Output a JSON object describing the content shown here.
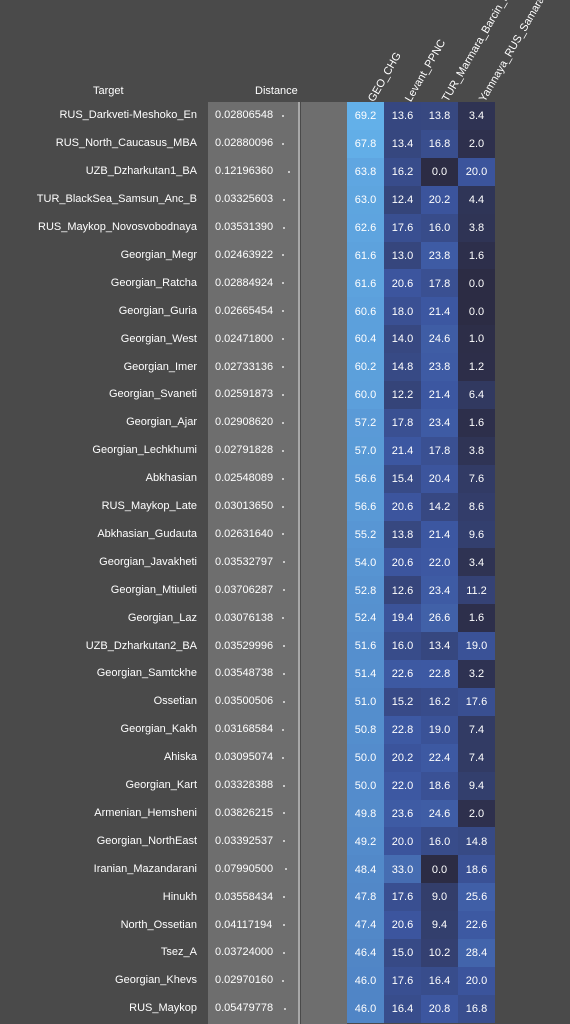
{
  "headers": {
    "target": "Target",
    "distance": "Distance"
  },
  "chart_data": {
    "type": "table",
    "columns": [
      "GEO_CHG",
      "Levant_PPNC",
      "TUR_Marmara_Barcin_N",
      "Yamnaya_RUS_Samara"
    ],
    "rows": [
      {
        "target": "RUS_Darkveti-Meshoko_En",
        "distance": "0.02806548",
        "values": [
          69.2,
          13.6,
          13.8,
          3.4
        ]
      },
      {
        "target": "RUS_North_Caucasus_MBA",
        "distance": "0.02880096",
        "values": [
          67.8,
          13.4,
          16.8,
          2.0
        ]
      },
      {
        "target": "UZB_Dzharkutan1_BA",
        "distance": "0.12196360",
        "values": [
          63.8,
          16.2,
          0.0,
          20.0
        ]
      },
      {
        "target": "TUR_BlackSea_Samsun_Anc_B",
        "distance": "0.03325603",
        "values": [
          63.0,
          12.4,
          20.2,
          4.4
        ]
      },
      {
        "target": "RUS_Maykop_Novosvobodnaya",
        "distance": "0.03531390",
        "values": [
          62.6,
          17.6,
          16.0,
          3.8
        ]
      },
      {
        "target": "Georgian_Megr",
        "distance": "0.02463922",
        "values": [
          61.6,
          13.0,
          23.8,
          1.6
        ]
      },
      {
        "target": "Georgian_Ratcha",
        "distance": "0.02884924",
        "values": [
          61.6,
          20.6,
          17.8,
          0.0
        ]
      },
      {
        "target": "Georgian_Guria",
        "distance": "0.02665454",
        "values": [
          60.6,
          18.0,
          21.4,
          0.0
        ]
      },
      {
        "target": "Georgian_West",
        "distance": "0.02471800",
        "values": [
          60.4,
          14.0,
          24.6,
          1.0
        ]
      },
      {
        "target": "Georgian_Imer",
        "distance": "0.02733136",
        "values": [
          60.2,
          14.8,
          23.8,
          1.2
        ]
      },
      {
        "target": "Georgian_Svaneti",
        "distance": "0.02591873",
        "values": [
          60.0,
          12.2,
          21.4,
          6.4
        ]
      },
      {
        "target": "Georgian_Ajar",
        "distance": "0.02908620",
        "values": [
          57.2,
          17.8,
          23.4,
          1.6
        ]
      },
      {
        "target": "Georgian_Lechkhumi",
        "distance": "0.02791828",
        "values": [
          57.0,
          21.4,
          17.8,
          3.8
        ]
      },
      {
        "target": "Abkhasian",
        "distance": "0.02548089",
        "values": [
          56.6,
          15.4,
          20.4,
          7.6
        ]
      },
      {
        "target": "RUS_Maykop_Late",
        "distance": "0.03013650",
        "values": [
          56.6,
          20.6,
          14.2,
          8.6
        ]
      },
      {
        "target": "Abkhasian_Gudauta",
        "distance": "0.02631640",
        "values": [
          55.2,
          13.8,
          21.4,
          9.6
        ]
      },
      {
        "target": "Georgian_Javakheti",
        "distance": "0.03532797",
        "values": [
          54.0,
          20.6,
          22.0,
          3.4
        ]
      },
      {
        "target": "Georgian_Mtiuleti",
        "distance": "0.03706287",
        "values": [
          52.8,
          12.6,
          23.4,
          11.2
        ]
      },
      {
        "target": "Georgian_Laz",
        "distance": "0.03076138",
        "values": [
          52.4,
          19.4,
          26.6,
          1.6
        ]
      },
      {
        "target": "UZB_Dzharkutan2_BA",
        "distance": "0.03529996",
        "values": [
          51.6,
          16.0,
          13.4,
          19.0
        ]
      },
      {
        "target": "Georgian_Samtckhe",
        "distance": "0.03548738",
        "values": [
          51.4,
          22.6,
          22.8,
          3.2
        ]
      },
      {
        "target": "Ossetian",
        "distance": "0.03500506",
        "values": [
          51.0,
          15.2,
          16.2,
          17.6
        ]
      },
      {
        "target": "Georgian_Kakh",
        "distance": "0.03168584",
        "values": [
          50.8,
          22.8,
          19.0,
          7.4
        ]
      },
      {
        "target": "Ahiska",
        "distance": "0.03095074",
        "values": [
          50.0,
          20.2,
          22.4,
          7.4
        ]
      },
      {
        "target": "Georgian_Kart",
        "distance": "0.03328388",
        "values": [
          50.0,
          22.0,
          18.6,
          9.4
        ]
      },
      {
        "target": "Armenian_Hemsheni",
        "distance": "0.03826215",
        "values": [
          49.8,
          23.6,
          24.6,
          2.0
        ]
      },
      {
        "target": "Georgian_NorthEast",
        "distance": "0.03392537",
        "values": [
          49.2,
          20.0,
          16.0,
          14.8
        ]
      },
      {
        "target": "Iranian_Mazandarani",
        "distance": "0.07990500",
        "values": [
          48.4,
          33.0,
          0.0,
          18.6
        ]
      },
      {
        "target": "Hinukh",
        "distance": "0.03558434",
        "values": [
          47.8,
          17.6,
          9.0,
          25.6
        ]
      },
      {
        "target": "North_Ossetian",
        "distance": "0.04117194",
        "values": [
          47.4,
          20.6,
          9.4,
          22.6
        ]
      },
      {
        "target": "Tsez_A",
        "distance": "0.03724000",
        "values": [
          46.4,
          15.0,
          10.2,
          28.4
        ]
      },
      {
        "target": "Georgian_Khevs",
        "distance": "0.02970160",
        "values": [
          46.0,
          17.6,
          16.4,
          20.0
        ]
      },
      {
        "target": "RUS_Maykop",
        "distance": "0.05479778",
        "values": [
          46.0,
          16.4,
          20.8,
          16.8
        ]
      }
    ],
    "color_scale": {
      "low": "#2c2c44",
      "mid": "#3c56a0",
      "high": "#64b2ea",
      "min": 0,
      "max": 70
    }
  }
}
